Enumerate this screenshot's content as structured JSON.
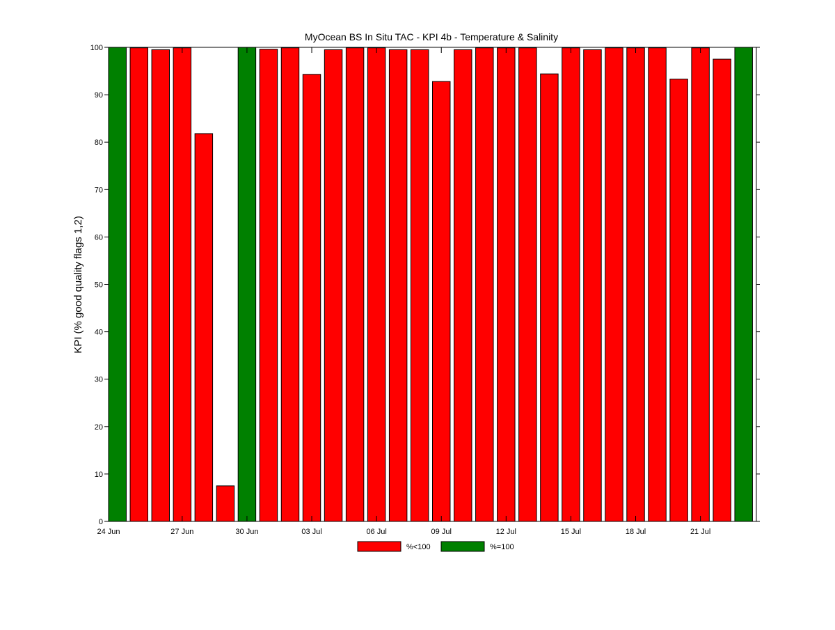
{
  "chart_data": {
    "type": "bar",
    "title": "MyOcean  BS In Situ TAC - KPI 4b - Temperature & Salinity",
    "xlabel": "",
    "ylabel": "KPI (% good quality flags 1,2)",
    "ylim": [
      0,
      100
    ],
    "yticks": [
      0,
      10,
      20,
      30,
      40,
      50,
      60,
      70,
      80,
      90,
      100
    ],
    "grid": false,
    "legend_position": "bottom-center",
    "x_start_date": "24 Jun",
    "x_tick_labels": [
      "24 Jun",
      "27 Jun",
      "30 Jun",
      "03 Jul",
      "06 Jul",
      "09 Jul",
      "12 Jul",
      "15 Jul",
      "18 Jul",
      "21 Jul"
    ],
    "legend": [
      {
        "label": "%<100",
        "color": "#ff0000"
      },
      {
        "label": "%=100",
        "color": "#008000"
      }
    ],
    "categories": [
      "24 Jun",
      "25 Jun",
      "26 Jun",
      "27 Jun",
      "28 Jun",
      "29 Jun",
      "30 Jun",
      "01 Jul",
      "02 Jul",
      "03 Jul",
      "04 Jul",
      "05 Jul",
      "06 Jul",
      "07 Jul",
      "08 Jul",
      "09 Jul",
      "10 Jul",
      "11 Jul",
      "12 Jul",
      "13 Jul",
      "14 Jul",
      "15 Jul",
      "16 Jul",
      "17 Jul",
      "18 Jul",
      "19 Jul",
      "20 Jul",
      "21 Jul",
      "22 Jul",
      "23 Jul"
    ],
    "values": [
      100,
      99.9,
      99.5,
      99.9,
      81.8,
      7.5,
      100,
      99.6,
      99.9,
      94.3,
      99.5,
      99.9,
      99.9,
      99.5,
      99.5,
      92.8,
      99.5,
      99.9,
      99.9,
      99.9,
      94.4,
      99.9,
      99.5,
      99.9,
      99.9,
      99.9,
      93.3,
      99.9,
      97.5,
      100
    ]
  }
}
